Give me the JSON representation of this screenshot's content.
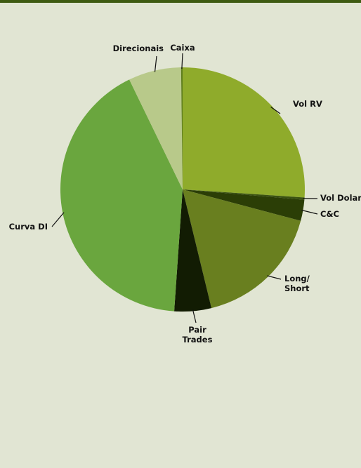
{
  "chart_data": {
    "type": "pie",
    "title": "",
    "legend": "none",
    "start": "top",
    "direction": "clockwise",
    "slices": [
      {
        "label": "Vol RV",
        "value": 26.1,
        "color": "#8fab2b"
      },
      {
        "label": "Vol Dolar",
        "value": 0.3,
        "color": "#3a5211"
      },
      {
        "label": "C&C",
        "value": 2.8,
        "color": "#2b3e06"
      },
      {
        "label": "Long/ Short",
        "value": 17.1,
        "color": "#697f1f"
      },
      {
        "label": "Pair Trades",
        "value": 4.9,
        "color": "#121c03"
      },
      {
        "label": "Curva DI",
        "value": 41.8,
        "color": "#6aa63e"
      },
      {
        "label": "Direcionais",
        "value": 7.0,
        "color": "#b8c98a"
      },
      {
        "label": "Caixa",
        "value": 0.2,
        "color": "#5e7d1c"
      }
    ]
  }
}
